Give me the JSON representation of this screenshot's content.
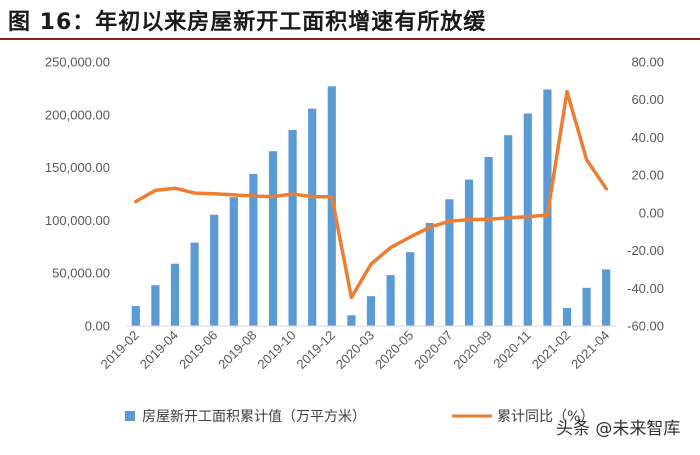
{
  "header": {
    "title": "图 16：年初以来房屋新开工面积增速有所放缓"
  },
  "chart_data": {
    "type": "bar+line",
    "title": "图 16：年初以来房屋新开工面积增速有所放缓",
    "x": [
      "2019-02",
      "2019-03",
      "2019-04",
      "2019-05",
      "2019-06",
      "2019-07",
      "2019-08",
      "2019-09",
      "2019-10",
      "2019-11",
      "2019-12",
      "2020-02",
      "2020-03",
      "2020-04",
      "2020-05",
      "2020-06",
      "2020-07",
      "2020-08",
      "2020-09",
      "2020-10",
      "2020-11",
      "2020-12",
      "2021-02",
      "2021-03",
      "2021-04"
    ],
    "x_tick_labels": [
      "2019-02",
      "2019-04",
      "2019-06",
      "2019-08",
      "2019-10",
      "2019-12",
      "2020-03",
      "2020-05",
      "2020-07",
      "2020-09",
      "2020-11",
      "2021-02",
      "2021-04"
    ],
    "y_left": {
      "range": [
        0,
        250000
      ],
      "ticks": [
        "0.00",
        "50,000.00",
        "100,000.00",
        "150,000.00",
        "200,000.00",
        "250,000.00"
      ]
    },
    "y_right": {
      "range": [
        -60,
        80
      ],
      "ticks": [
        "-60.00",
        "-40.00",
        "-20.00",
        "0.00",
        "20.00",
        "40.00",
        "60.00",
        "80.00"
      ]
    },
    "series": [
      {
        "name": "房屋新开工面积累计值（万平方米）",
        "type": "bar",
        "axis": "left",
        "color": "#5b9bd5",
        "values": [
          18800,
          38600,
          59000,
          79000,
          105400,
          122000,
          144000,
          165500,
          185600,
          205800,
          227000,
          10100,
          28200,
          48200,
          69900,
          97500,
          120000,
          138600,
          160000,
          180700,
          201200,
          224000,
          17000,
          36200,
          53600
        ]
      },
      {
        "name": "累计同比（%）",
        "type": "line",
        "axis": "right",
        "color": "#ed7d31",
        "values": [
          6.0,
          11.9,
          13.1,
          10.5,
          10.1,
          9.5,
          8.9,
          8.6,
          10.0,
          8.6,
          8.5,
          -44.9,
          -27.2,
          -18.4,
          -12.8,
          -7.6,
          -4.5,
          -3.6,
          -3.4,
          -2.7,
          -2.0,
          -1.2,
          64.3,
          28.2,
          12.8
        ]
      }
    ],
    "legend_placement": "bottom",
    "grid": false
  },
  "watermark": {
    "text": "头条 @未来智库"
  }
}
